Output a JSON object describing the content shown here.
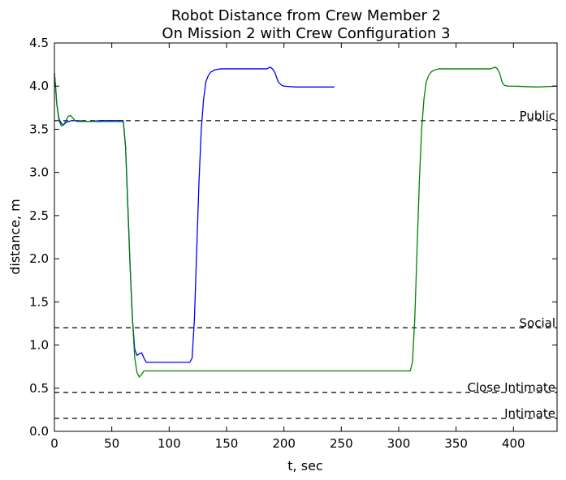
{
  "chart_data": {
    "type": "line",
    "title": "Robot Distance from Crew Member 2",
    "subtitle": "On Mission 2 with Crew Configuration 3",
    "xlabel": "t, sec",
    "ylabel": "distance, m",
    "xlim": [
      0,
      438
    ],
    "ylim": [
      0.0,
      4.5
    ],
    "xticks": [
      0,
      50,
      100,
      150,
      200,
      250,
      300,
      350,
      400
    ],
    "yticks": [
      "0.0",
      "0.5",
      "1.0",
      "1.5",
      "2.0",
      "2.5",
      "3.0",
      "3.5",
      "4.0",
      "4.5"
    ],
    "grid": false,
    "thresholds": [
      {
        "name": "Public",
        "value": 3.6
      },
      {
        "name": "Social",
        "value": 1.2
      },
      {
        "name": "Close Intimate",
        "value": 0.45
      },
      {
        "name": "Intimate",
        "value": 0.15
      }
    ],
    "series": [
      {
        "color": "#0000ff",
        "x": [
          0,
          1,
          2,
          4,
          6,
          8,
          10,
          15,
          20,
          30,
          40,
          50,
          55,
          60,
          62,
          64,
          66,
          68,
          70,
          72,
          74,
          76,
          78,
          80,
          85,
          90,
          100,
          110,
          118,
          120,
          122,
          124,
          126,
          128,
          130,
          132,
          134,
          136,
          140,
          145,
          150,
          160,
          170,
          180,
          185,
          188,
          190,
          192,
          195,
          198,
          200,
          210,
          220,
          230,
          244
        ],
        "y": [
          4.15,
          4.0,
          3.8,
          3.62,
          3.57,
          3.55,
          3.58,
          3.6,
          3.6,
          3.59,
          3.6,
          3.6,
          3.6,
          3.6,
          3.3,
          2.6,
          1.9,
          1.3,
          0.95,
          0.88,
          0.9,
          0.91,
          0.85,
          0.8,
          0.8,
          0.8,
          0.8,
          0.8,
          0.8,
          0.85,
          1.3,
          2.1,
          2.9,
          3.5,
          3.85,
          4.05,
          4.12,
          4.16,
          4.19,
          4.2,
          4.2,
          4.2,
          4.2,
          4.2,
          4.2,
          4.22,
          4.2,
          4.16,
          4.05,
          4.01,
          4.0,
          3.99,
          3.99,
          3.99,
          3.99
        ]
      },
      {
        "color": "#008000",
        "x": [
          0,
          1,
          2,
          4,
          6,
          8,
          10,
          12,
          14,
          16,
          18,
          20,
          30,
          40,
          50,
          55,
          60,
          62,
          64,
          66,
          68,
          70,
          72,
          74,
          76,
          78,
          80,
          85,
          90,
          100,
          150,
          200,
          250,
          300,
          310,
          312,
          314,
          316,
          318,
          320,
          322,
          324,
          326,
          328,
          330,
          335,
          340,
          360,
          380,
          384,
          386,
          388,
          390,
          392,
          395,
          400,
          420,
          438
        ],
        "y": [
          4.15,
          4.0,
          3.8,
          3.6,
          3.54,
          3.55,
          3.6,
          3.65,
          3.66,
          3.63,
          3.6,
          3.59,
          3.59,
          3.59,
          3.59,
          3.59,
          3.59,
          3.3,
          2.6,
          1.9,
          1.3,
          0.85,
          0.68,
          0.63,
          0.66,
          0.7,
          0.7,
          0.7,
          0.7,
          0.7,
          0.7,
          0.7,
          0.7,
          0.7,
          0.7,
          0.8,
          1.3,
          2.1,
          2.9,
          3.5,
          3.85,
          4.05,
          4.12,
          4.16,
          4.18,
          4.2,
          4.2,
          4.2,
          4.2,
          4.22,
          4.2,
          4.15,
          4.05,
          4.01,
          4.0,
          4.0,
          3.99,
          4.0
        ]
      }
    ]
  }
}
